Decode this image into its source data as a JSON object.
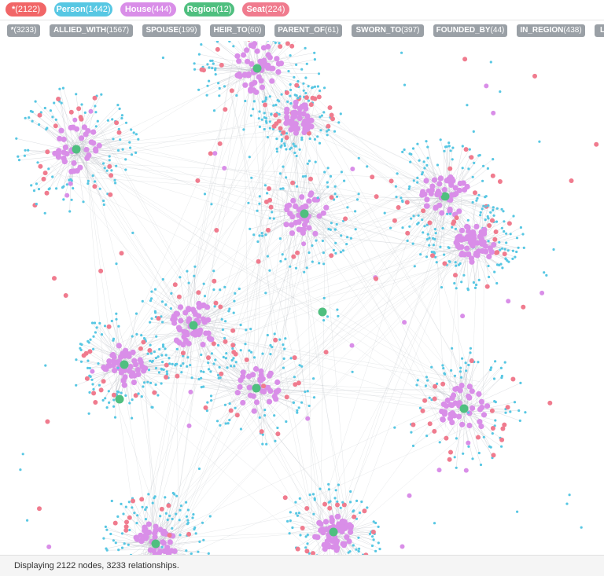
{
  "node_labels": [
    {
      "name": "*",
      "count": "(2122)",
      "color": "#f16667"
    },
    {
      "name": "Person",
      "count": "(1442)",
      "color": "#57c7e3"
    },
    {
      "name": "House",
      "count": "(444)",
      "color": "#d98ee8"
    },
    {
      "name": "Region",
      "count": "(12)",
      "color": "#4fbf7f"
    },
    {
      "name": "Seat",
      "count": "(224)",
      "color": "#f07b8e"
    }
  ],
  "relationship_types": [
    {
      "name": "*",
      "count": "(3233)"
    },
    {
      "name": "ALLIED_WITH",
      "count": "(1567)"
    },
    {
      "name": "SPOUSE",
      "count": "(199)"
    },
    {
      "name": "HEIR_TO",
      "count": "(60)"
    },
    {
      "name": "PARENT_OF",
      "count": "(61)"
    },
    {
      "name": "SWORN_TO",
      "count": "(397)"
    },
    {
      "name": "FOUNDED_BY",
      "count": "(44)"
    },
    {
      "name": "IN_REGION",
      "count": "(438)"
    },
    {
      "name": "L",
      "count": ""
    }
  ],
  "node_colors": {
    "person": "#57c7e3",
    "house": "#d98ee8",
    "region": "#4fbf7f",
    "seat": "#f07b8e",
    "edge": "#b8bcc4"
  },
  "status": {
    "text": "Displaying 2122 nodes, 3233 relationships."
  }
}
